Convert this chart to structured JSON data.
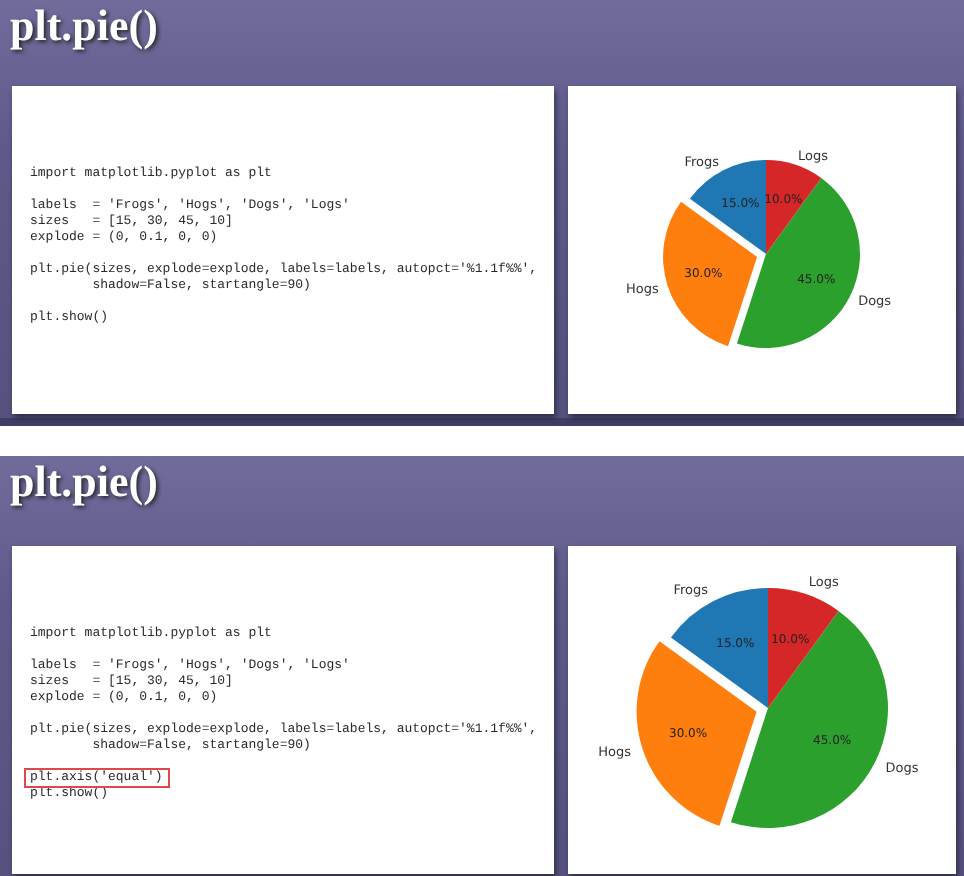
{
  "chart_data": [
    {
      "type": "other",
      "title": "plt.pie()",
      "annotations": [
        "import matplotlib.pyplot as plt",
        "labels  = 'Frogs', 'Hogs', 'Dogs', 'Logs'\nsizes   = [15, 30, 45, 10]\nexplode = (0, 0.1, 0, 0)",
        "plt.pie(sizes, explode=explode, labels=labels, autopct='%1.1f%%',\n        shadow=False, startangle=90)",
        "plt.show()"
      ]
    },
    {
      "type": "pie",
      "categories": [
        "Frogs",
        "Hogs",
        "Dogs",
        "Logs"
      ],
      "values": [
        15,
        30,
        45,
        10
      ],
      "colors": [
        "#1f77b4",
        "#ff7f0e",
        "#2ca02c",
        "#d62728"
      ],
      "value_labels": [
        "15.0%",
        "30.0%",
        "45.0%",
        "10.0%"
      ]
    },
    {
      "type": "other",
      "title": "plt.pie()",
      "annotations": [
        "import matplotlib.pyplot as plt",
        "labels  = 'Frogs', 'Hogs', 'Dogs', 'Logs'\nsizes   = [15, 30, 45, 10]\nexplode = (0, 0.1, 0, 0)",
        "plt.pie(sizes, explode=explode, labels=labels, autopct='%1.1f%%',\n        shadow=False, startangle=90)",
        "plt.axis('equal')\nplt.show()"
      ]
    },
    {
      "type": "pie",
      "categories": [
        "Frogs",
        "Hogs",
        "Dogs",
        "Logs"
      ],
      "values": [
        15,
        30,
        45,
        10
      ],
      "colors": [
        "#1f77b4",
        "#ff7f0e",
        "#2ca02c",
        "#d62728"
      ],
      "value_labels": [
        "15.0%",
        "30.0%",
        "45.0%",
        "10.0%"
      ]
    }
  ]
}
